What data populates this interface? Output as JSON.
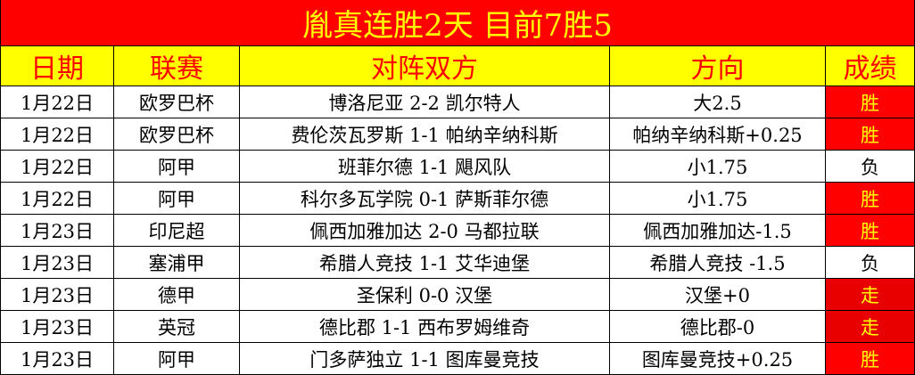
{
  "title": "胤真连胜2天  目前7胜5",
  "headers": [
    "日期",
    "联赛",
    "对阵双方",
    "方向",
    "成绩"
  ],
  "result_colors": {
    "胜": "#ff0000",
    "走": "#e80000",
    "负": "#ffffff"
  },
  "rows": [
    {
      "date": "1月22日",
      "league": "欧罗巴杯",
      "match": "博洛尼亚 2-2 凯尔特人",
      "pick": "大2.5",
      "result": "胜"
    },
    {
      "date": "1月22日",
      "league": "欧罗巴杯",
      "match": "费伦茨瓦罗斯 1-1 帕纳辛纳科斯",
      "pick": "帕纳辛纳科斯+0.25",
      "result": "胜"
    },
    {
      "date": "1月22日",
      "league": "阿甲",
      "match": "班菲尔德 1-1 飓风队",
      "pick": "小1.75",
      "result": "负"
    },
    {
      "date": "1月22日",
      "league": "阿甲",
      "match": "科尔多瓦学院 0-1 萨斯菲尔德",
      "pick": "小1.75",
      "result": "胜"
    },
    {
      "date": "1月23日",
      "league": "印尼超",
      "match": "佩西加雅加达 2-0 马都拉联",
      "pick": "佩西加雅加达-1.5",
      "result": "胜"
    },
    {
      "date": "1月23日",
      "league": "塞浦甲",
      "match": "希腊人竞技 1-1 艾华迪堡",
      "pick": "希腊人竞技 -1.5",
      "result": "负"
    },
    {
      "date": "1月23日",
      "league": "德甲",
      "match": "圣保利 0-0 汉堡",
      "pick": "汉堡+0",
      "result": "走"
    },
    {
      "date": "1月23日",
      "league": "英冠",
      "match": "德比郡 1-1 西布罗姆维奇",
      "pick": "德比郡-0",
      "result": "走"
    },
    {
      "date": "1月23日",
      "league": "阿甲",
      "match": "门多萨独立 1-1 图库曼竞技",
      "pick": "图库曼竞技+0.25",
      "result": "胜"
    }
  ]
}
